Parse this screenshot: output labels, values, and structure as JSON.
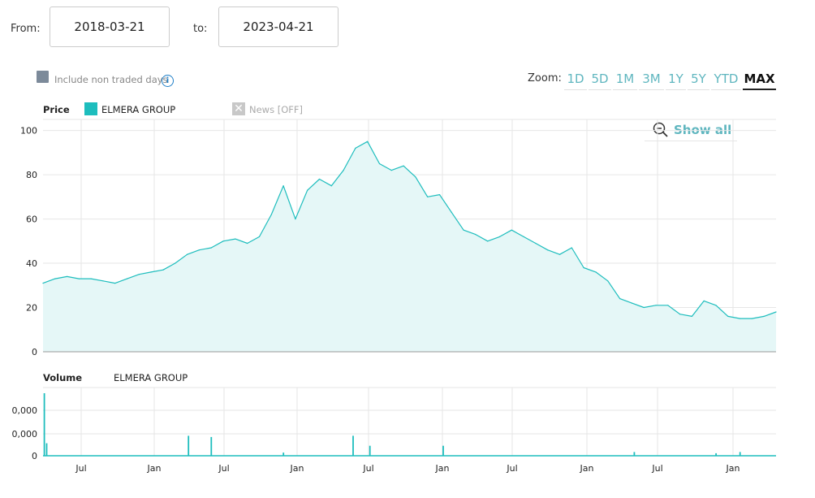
{
  "range": {
    "from_label": "From:",
    "from": "2018-03-21",
    "to_label": "to:",
    "to": "2023-04-21"
  },
  "options": {
    "non_traded_label": "Include non traded days",
    "info_icon": "info-icon"
  },
  "zoom": {
    "label": "Zoom:",
    "buttons": [
      "1D",
      "5D",
      "1M",
      "3M",
      "1Y",
      "5Y",
      "YTD",
      "MAX"
    ],
    "active": "MAX"
  },
  "legend": {
    "price_label": "Price",
    "series_name": "ELMERA GROUP",
    "news_label": "News [OFF]",
    "volume_label": "Volume"
  },
  "show_all": {
    "label": "Show all",
    "icon": "zoom-out-icon"
  },
  "colors": {
    "series": "#1dbdbd",
    "fill": "#e5f7f7",
    "accent": "#5fb6bf"
  },
  "chart_data": [
    {
      "type": "area",
      "ylim": [
        0,
        105
      ],
      "yticks": [
        "0",
        "20",
        "40",
        "60",
        "80",
        "100"
      ],
      "xticks": [
        "Jul",
        "Jan",
        "Jul",
        "Jan",
        "Jul",
        "Jan",
        "Jul",
        "Jan",
        "Jul",
        "Jan"
      ],
      "xlim": [
        0,
        61
      ],
      "series": [
        {
          "name": "ELMERA GROUP",
          "x": [
            0,
            1,
            2,
            3,
            4,
            5,
            6,
            7,
            8,
            9,
            10,
            11,
            12,
            13,
            14,
            15,
            16,
            17,
            18,
            19,
            20,
            21,
            22,
            23,
            24,
            25,
            26,
            27,
            28,
            29,
            30,
            31,
            32,
            33,
            34,
            35,
            36,
            37,
            38,
            39,
            40,
            41,
            42,
            43,
            44,
            45,
            46,
            47,
            48,
            49,
            50,
            51,
            52,
            53,
            54,
            55,
            56,
            57,
            58,
            59,
            60,
            61
          ],
          "values": [
            31,
            33,
            34,
            33,
            33,
            32,
            31,
            33,
            35,
            36,
            37,
            40,
            44,
            46,
            47,
            50,
            51,
            49,
            52,
            62,
            75,
            60,
            73,
            78,
            75,
            82,
            92,
            95,
            85,
            82,
            84,
            79,
            70,
            71,
            63,
            55,
            53,
            50,
            52,
            55,
            52,
            49,
            46,
            44,
            47,
            38,
            36,
            32,
            24,
            22,
            20,
            21,
            21,
            17,
            16,
            23,
            21,
            16,
            15,
            15,
            16,
            18
          ]
        }
      ]
    },
    {
      "type": "bar",
      "yticks": [
        "0",
        "0,000",
        "0,000"
      ],
      "ylim": [
        0,
        100
      ],
      "xlim": [
        0,
        61
      ],
      "series": [
        {
          "name": "ELMERA GROUP",
          "x": [
            0.1,
            0.3,
            12.1,
            14.0,
            20.0,
            25.8,
            27.2,
            33.3,
            49.2,
            56.0,
            58.0
          ],
          "values": [
            100,
            20,
            32,
            30,
            5,
            32,
            16,
            16,
            6,
            4,
            6
          ]
        }
      ]
    }
  ]
}
